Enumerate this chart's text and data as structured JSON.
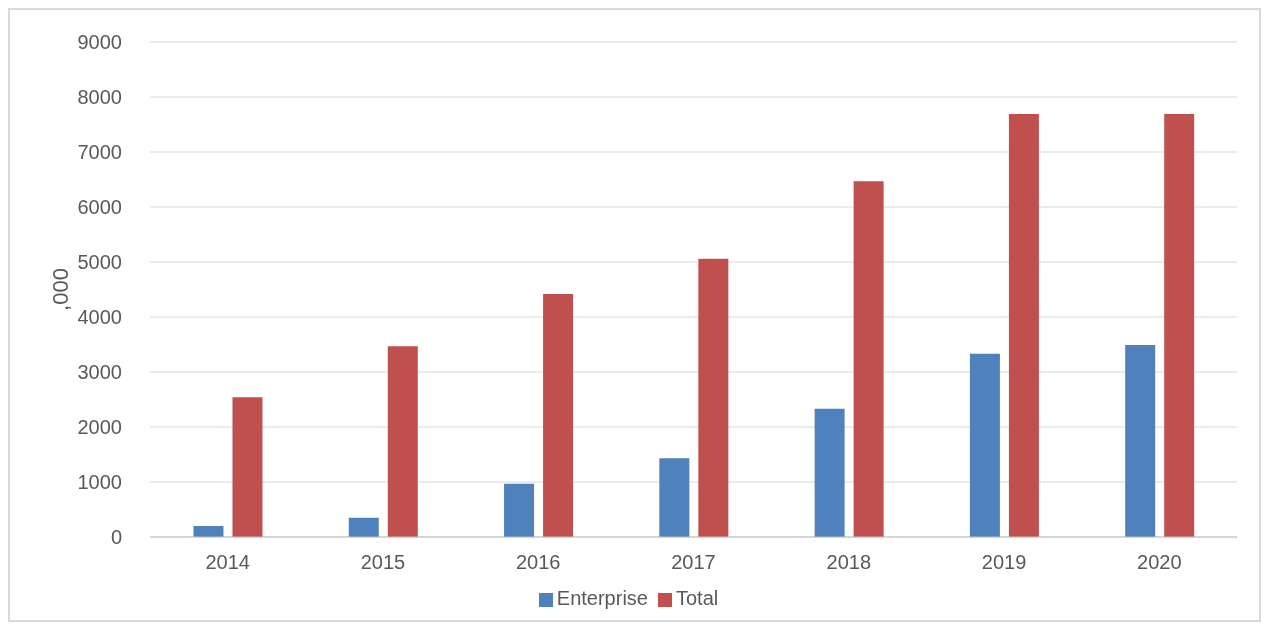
{
  "chart_data": {
    "type": "bar",
    "ylabel": ",000",
    "categories": [
      "2014",
      "2015",
      "2016",
      "2017",
      "2018",
      "2019",
      "2020"
    ],
    "series": [
      {
        "name": "Enterprise",
        "color": "#4f81bd",
        "values": [
          200,
          350,
          970,
          1430,
          2330,
          3330,
          3490
        ]
      },
      {
        "name": "Total",
        "color": "#c0504d",
        "values": [
          2540,
          3470,
          4420,
          5060,
          6470,
          7690,
          7690
        ]
      }
    ],
    "ylim": [
      0,
      9000
    ],
    "yticks": [
      0,
      1000,
      2000,
      3000,
      4000,
      5000,
      6000,
      7000,
      8000,
      9000
    ],
    "grid": "y",
    "legend": "bottom"
  }
}
